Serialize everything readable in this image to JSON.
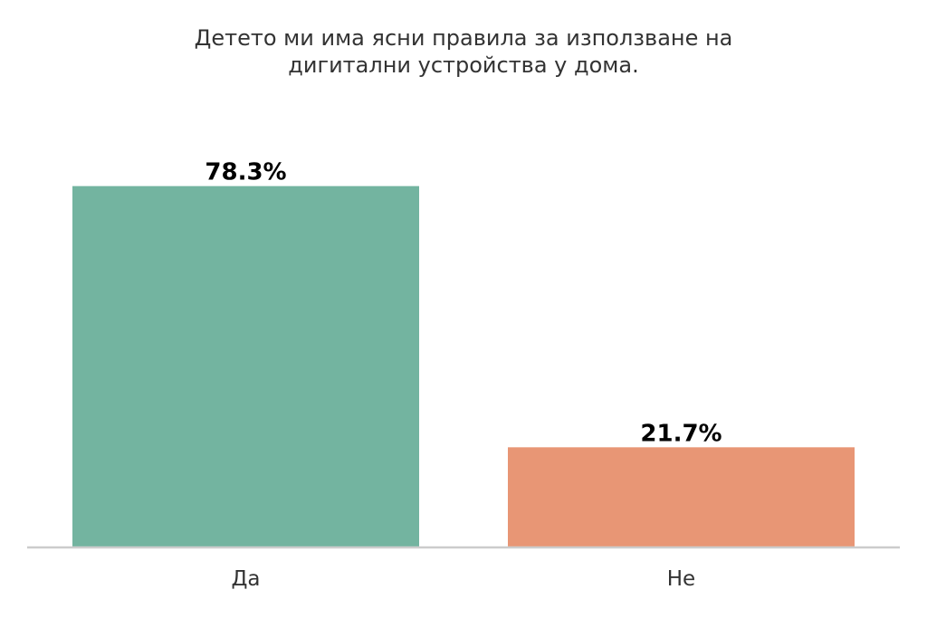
{
  "chart_data": {
    "type": "bar",
    "title_lines": [
      "Детето ми има ясни правила за използване на",
      "дигитални устройства у дома."
    ],
    "categories": [
      "Да",
      "Не"
    ],
    "values": [
      78.3,
      21.7
    ],
    "value_labels": [
      "78.3%",
      "21.7%"
    ],
    "colors": [
      "#73B4A0",
      "#E89675"
    ],
    "baseline_color": "#CCCCCC",
    "ylim": [
      0,
      100
    ],
    "grid": false,
    "legend": "none"
  }
}
